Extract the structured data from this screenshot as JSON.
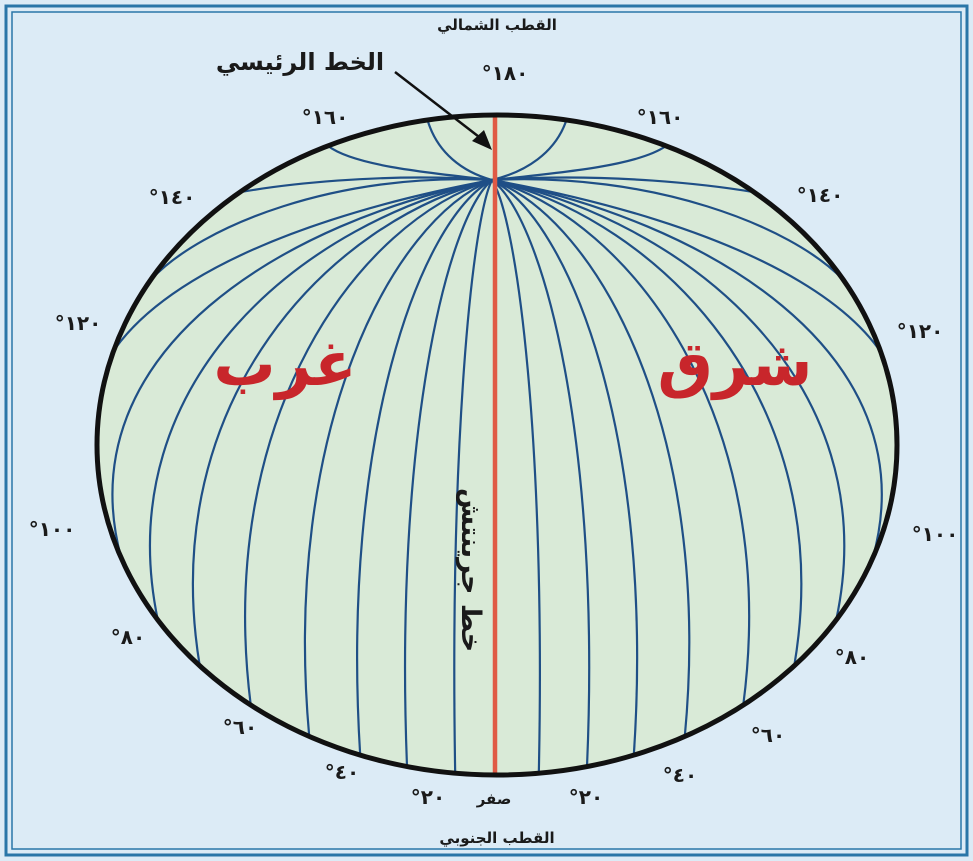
{
  "colors": {
    "background": "#dcebf6",
    "frame": "#2a76a8",
    "globe_fill": "#d9ead7",
    "outline": "#111111",
    "meridians": "#1f4f86",
    "prime_meridian": "#e05a45",
    "region_text": "#c8262b"
  },
  "labels": {
    "north_pole": "القطب الشمالي",
    "south_pole": "القطب الجنوبي",
    "main_line": "الخط الرئيسي",
    "greenwich": "خط جرينتش",
    "west": "غرب",
    "east": "شرق",
    "zero": "صفر"
  },
  "west_degrees": [
    {
      "label": "°١٨٠"
    },
    {
      "label": "°١٦٠"
    },
    {
      "label": "°١٤٠"
    },
    {
      "label": "°١٢٠"
    },
    {
      "label": "°١٠٠"
    },
    {
      "label": "°٨٠"
    },
    {
      "label": "°٦٠"
    },
    {
      "label": "°٤٠"
    },
    {
      "label": "°٢٠"
    }
  ],
  "east_degrees": [
    {
      "label": "°١٦٠"
    },
    {
      "label": "°١٤٠"
    },
    {
      "label": "°١٢٠"
    },
    {
      "label": "°١٠٠"
    },
    {
      "label": "°٨٠"
    },
    {
      "label": "°٦٠"
    },
    {
      "label": "°٤٠"
    },
    {
      "label": "°٢٠"
    }
  ]
}
